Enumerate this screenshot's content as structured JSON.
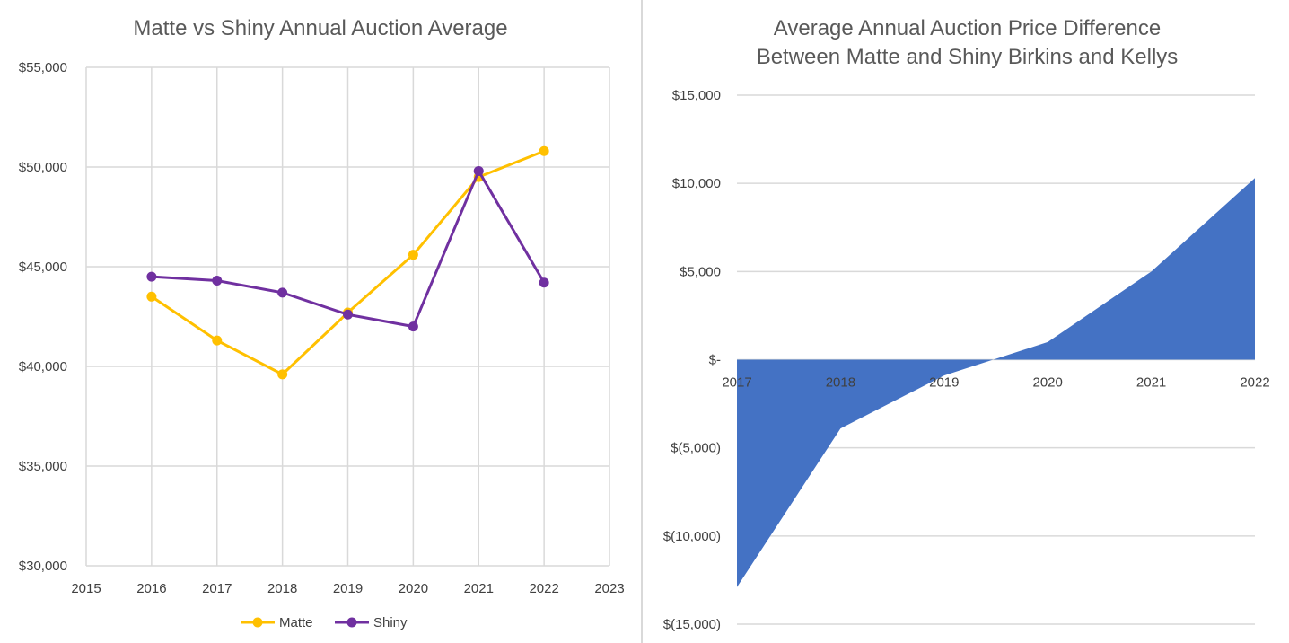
{
  "chart_data": [
    {
      "type": "line",
      "title": "Matte vs Shiny Annual Auction Average",
      "xlim": [
        2015,
        2023
      ],
      "x_ticks": [
        "2015",
        "2016",
        "2017",
        "2018",
        "2019",
        "2020",
        "2021",
        "2022",
        "2023"
      ],
      "ylim": [
        30000,
        55000
      ],
      "y_ticks": [
        "$30,000",
        "$35,000",
        "$40,000",
        "$45,000",
        "$50,000",
        "$55,000"
      ],
      "grid": true,
      "legend_position": "bottom",
      "series": [
        {
          "name": "Matte",
          "color": "#FFC000",
          "points": [
            {
              "x": 2016,
              "y": 43500
            },
            {
              "x": 2017,
              "y": 41300
            },
            {
              "x": 2018,
              "y": 39600
            },
            {
              "x": 2019,
              "y": 42700
            },
            {
              "x": 2020,
              "y": 45600
            },
            {
              "x": 2021,
              "y": 49500
            },
            {
              "x": 2022,
              "y": 50800
            }
          ]
        },
        {
          "name": "Shiny",
          "color": "#7030A0",
          "points": [
            {
              "x": 2016,
              "y": 44500
            },
            {
              "x": 2017,
              "y": 44300
            },
            {
              "x": 2018,
              "y": 43700
            },
            {
              "x": 2019,
              "y": 42600
            },
            {
              "x": 2020,
              "y": 42000
            },
            {
              "x": 2021,
              "y": 49800
            },
            {
              "x": 2022,
              "y": 44200
            }
          ]
        }
      ]
    },
    {
      "type": "area",
      "title_lines": [
        "Average Annual Auction Price Difference",
        "Between Matte and Shiny Birkins and Kellys"
      ],
      "categories": [
        "2017",
        "2018",
        "2019",
        "2020",
        "2021",
        "2022"
      ],
      "values": [
        -12900,
        -3900,
        -900,
        1000,
        5000,
        10300
      ],
      "ylim": [
        -15000,
        15000
      ],
      "y_ticks": [
        "$(15,000)",
        "$(10,000)",
        "$(5,000)",
        "$-",
        "$5,000",
        "$10,000",
        "$15,000"
      ],
      "grid": true,
      "fill_color": "#4472C4"
    }
  ]
}
